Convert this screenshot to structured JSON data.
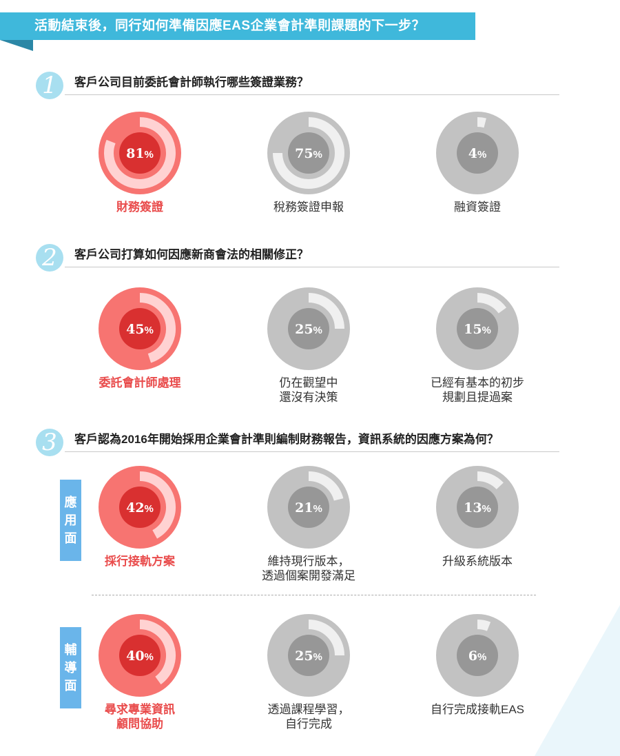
{
  "banner": {
    "title": "活動結束後，同行如何準備因應EAS企業會計準則課題的下一步？"
  },
  "colors": {
    "banner": "#3fb8db",
    "banner_fold": "#2b87a6",
    "badge": "#a8dff0",
    "highlight_ring": "#f77471",
    "highlight_arc": "#ffd2d2",
    "highlight_center": "#d93030",
    "grey_ring": "#c2c2c2",
    "grey_arc": "#f0f0f0",
    "grey_center": "#979797",
    "highlight_text": "#e94c4c",
    "side_tab": "#6ab5ea"
  },
  "sections": [
    {
      "number": "1",
      "question": "客戶公司目前委託會計師執行哪些簽證業務？"
    },
    {
      "number": "2",
      "question": "客戶公司打算如何因應新商會法的相關修正？"
    },
    {
      "number": "3",
      "question": "客戶認為2016年開始採用企業會計準則編制財務報告，資訊系統的因應方案為何？"
    }
  ],
  "side_tabs": {
    "application": [
      "應",
      "用",
      "面"
    ],
    "assistance": [
      "輔",
      "導",
      "面"
    ]
  },
  "chart_data": [
    {
      "type": "pie",
      "title": "客戶公司目前委託會計師執行哪些簽證業務？",
      "categories": [
        "財務簽證",
        "稅務簽證申報",
        "融資簽證"
      ],
      "values": [
        81,
        75,
        4
      ],
      "unit": "%",
      "captions": [
        [
          "財務簽證"
        ],
        [
          "稅務簽證申報"
        ],
        [
          "融資簽證"
        ]
      ],
      "highlight_index": 0
    },
    {
      "type": "pie",
      "title": "客戶公司打算如何因應新商會法的相關修正？",
      "categories": [
        "委託會計師處理",
        "仍在觀望中還沒有決策",
        "已經有基本的初步規劃且提過案"
      ],
      "values": [
        45,
        25,
        15
      ],
      "unit": "%",
      "captions": [
        [
          "委託會計師處理"
        ],
        [
          "仍在觀望中",
          "還沒有決策"
        ],
        [
          "已經有基本的初步",
          "規劃且提過案"
        ]
      ],
      "highlight_index": 0
    },
    {
      "type": "pie",
      "title": "應用面",
      "categories": [
        "採行接軌方案",
        "維持現行版本，透過個案開發滿足",
        "升級系統版本"
      ],
      "values": [
        42,
        21,
        13
      ],
      "unit": "%",
      "captions": [
        [
          "採行接軌方案"
        ],
        [
          "維持現行版本，",
          "透過個案開發滿足"
        ],
        [
          "升級系統版本"
        ]
      ],
      "highlight_index": 0
    },
    {
      "type": "pie",
      "title": "輔導面",
      "categories": [
        "尋求專業資訊顧問協助",
        "透過課程學習，自行完成",
        "自行完成接軌EAS"
      ],
      "values": [
        40,
        25,
        6
      ],
      "unit": "%",
      "captions": [
        [
          "尋求專業資訊",
          "顧問協助"
        ],
        [
          "透過課程學習，",
          "自行完成"
        ],
        [
          "自行完成接軌EAS"
        ]
      ],
      "highlight_index": 0
    }
  ]
}
